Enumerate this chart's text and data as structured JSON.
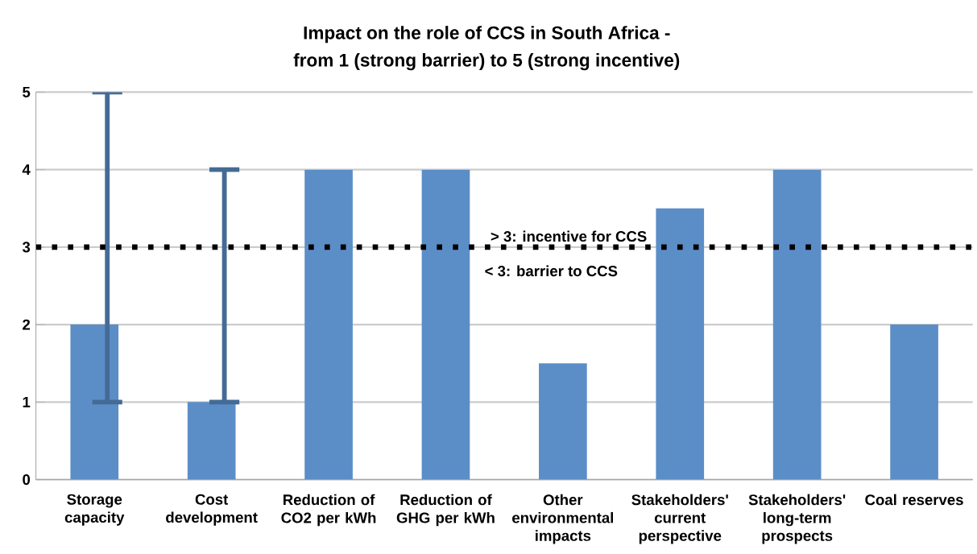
{
  "chart_data": {
    "type": "bar",
    "title": "Impact on the role of CCS in South Africa -",
    "subtitle": "from 1 (strong barrier) to 5 (strong incentive)",
    "categories": [
      "Storage capacity",
      "Cost development",
      "Reduction of CO2 per kWh",
      "Reduction of GHG per kWh",
      "Other environmental impacts",
      "Stakeholders' current perspective",
      "Stakeholders' long-term prospects",
      "Coal reserves"
    ],
    "values": [
      2,
      1,
      4,
      4,
      1.5,
      3.5,
      4,
      2
    ],
    "errors": [
      [
        1,
        5
      ],
      [
        1,
        4
      ],
      null,
      null,
      null,
      null,
      null,
      null
    ],
    "color": "#5b8ec7",
    "ylim": [
      0,
      5
    ],
    "yticks": [
      0,
      1,
      2,
      3,
      4,
      5
    ],
    "grid": "y",
    "ref_lines": [
      {
        "axis": "y",
        "value": 3,
        "label": "> 3: incentive for CCS",
        "color": "#000000",
        "line_style": "dotted"
      }
    ],
    "annotations": [
      {
        "text": "< 3: barrier to CCS",
        "y": 3
      }
    ]
  }
}
